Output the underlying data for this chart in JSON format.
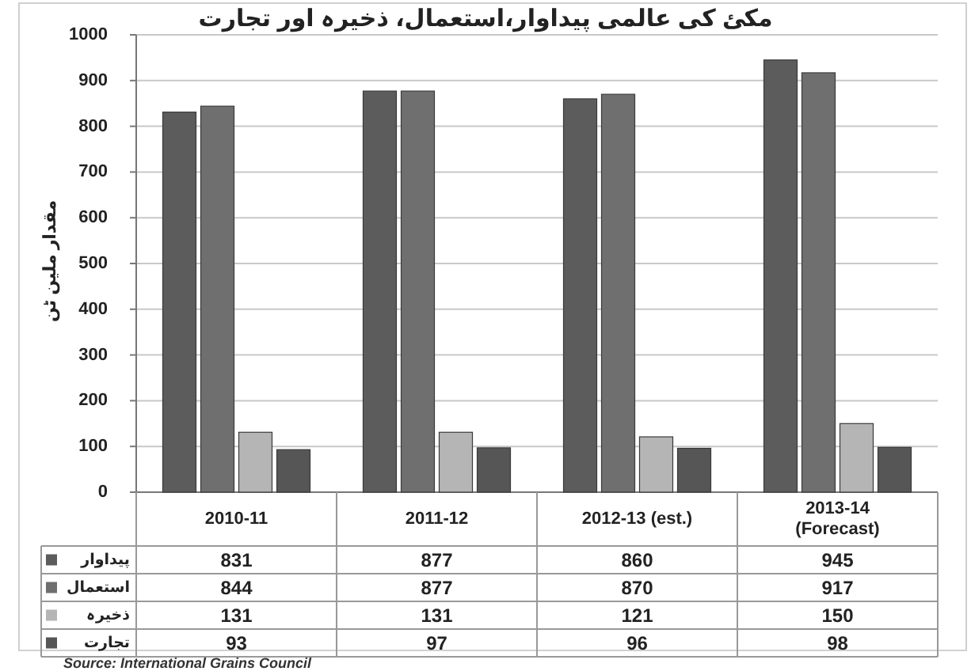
{
  "chart_data": {
    "type": "bar",
    "title": "مکئ کی عالمی پیداوار،استعمال، ذخیرہ اور تجارت",
    "ylabel": "مقدار ملین ٹن",
    "categories": [
      "2010-11",
      "2011-12",
      "2012-13 (est.)",
      "2013-14 (Forecast)"
    ],
    "series": [
      {
        "name": "پیداوار",
        "color": "#5c5c5c",
        "values": [
          831,
          877,
          860,
          945
        ]
      },
      {
        "name": "استعمال",
        "color": "#6f6f6f",
        "values": [
          844,
          877,
          870,
          917
        ]
      },
      {
        "name": "ذخیرہ",
        "color": "#b5b5b5",
        "values": [
          131,
          131,
          121,
          150
        ]
      },
      {
        "name": "تجارت",
        "color": "#565656",
        "values": [
          93,
          97,
          96,
          98
        ]
      }
    ],
    "ylim": [
      0,
      1000
    ],
    "yticks": [
      0,
      100,
      200,
      300,
      400,
      500,
      600,
      700,
      800,
      900,
      1000
    ],
    "grid": "y",
    "legend": "bottom",
    "data_labels": true,
    "annotations": [
      "Source: International Grains Council"
    ]
  }
}
